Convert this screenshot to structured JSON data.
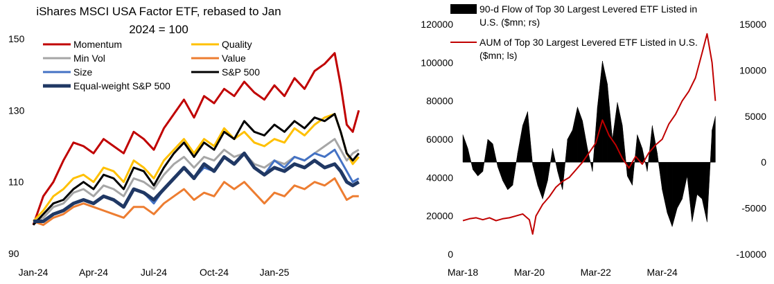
{
  "chart_data": [
    {
      "type": "line",
      "title_lines": [
        "iShares MSCI USA Factor ETF, rebased to Jan",
        "2024 = 100"
      ],
      "x_ticks": [
        "Jan-24",
        "Apr-24",
        "Jul-24",
        "Oct-24",
        "Jan-25"
      ],
      "x_range": [
        0,
        16
      ],
      "x_tick_positions": [
        0,
        3,
        6,
        9,
        12
      ],
      "ylim": [
        90,
        150
      ],
      "y_ticks": [
        "90",
        "110",
        "130",
        "150"
      ],
      "y_tick_values": [
        90,
        110,
        130,
        150
      ],
      "grid": false,
      "series": [
        {
          "name": "Momentum",
          "color": "#c00000",
          "width": 3,
          "x": [
            0,
            0.5,
            1,
            1.5,
            2,
            2.5,
            3,
            3.5,
            4,
            4.5,
            5,
            5.5,
            6,
            6.5,
            7,
            7.5,
            8,
            8.5,
            9,
            9.5,
            10,
            10.5,
            11,
            11.5,
            12,
            12.5,
            13,
            13.5,
            14,
            14.5,
            15,
            15.3,
            15.6,
            15.9,
            16.2
          ],
          "values": [
            98,
            106,
            110,
            116,
            121,
            120,
            118,
            122,
            120,
            118,
            124,
            122,
            119,
            125,
            129,
            133,
            128,
            134,
            132,
            136,
            134,
            138,
            135,
            133,
            137,
            134,
            139,
            136,
            141,
            143,
            146,
            137,
            126,
            124,
            130
          ]
        },
        {
          "name": "Quality",
          "color": "#ffc000",
          "width": 3,
          "x": [
            0,
            0.5,
            1,
            1.5,
            2,
            2.5,
            3,
            3.5,
            4,
            4.5,
            5,
            5.5,
            6,
            6.5,
            7,
            7.5,
            8,
            8.5,
            9,
            9.5,
            10,
            10.5,
            11,
            11.5,
            12,
            12.5,
            13,
            13.5,
            14,
            14.5,
            15,
            15.3,
            15.6,
            15.9,
            16.2
          ],
          "values": [
            99,
            102,
            106,
            108,
            111,
            112,
            110,
            114,
            113,
            110,
            116,
            114,
            111,
            116,
            119,
            122,
            118,
            122,
            120,
            125,
            122,
            124,
            121,
            120,
            122,
            121,
            125,
            123,
            126,
            128,
            129,
            124,
            118,
            115,
            117
          ]
        },
        {
          "name": "Min Vol",
          "color": "#a6a6a6",
          "width": 3,
          "x": [
            0,
            0.5,
            1,
            1.5,
            2,
            2.5,
            3,
            3.5,
            4,
            4.5,
            5,
            5.5,
            6,
            6.5,
            7,
            7.5,
            8,
            8.5,
            9,
            9.5,
            10,
            10.5,
            11,
            11.5,
            12,
            12.5,
            13,
            13.5,
            14,
            14.5,
            15,
            15.3,
            15.6,
            15.9,
            16.2
          ],
          "values": [
            99,
            100,
            103,
            104,
            107,
            108,
            106,
            109,
            108,
            106,
            111,
            110,
            108,
            112,
            115,
            117,
            114,
            117,
            116,
            119,
            117,
            118,
            115,
            114,
            116,
            115,
            117,
            116,
            118,
            120,
            122,
            119,
            116,
            118,
            119
          ]
        },
        {
          "name": "Value",
          "color": "#ed7d31",
          "width": 3,
          "x": [
            0,
            0.5,
            1,
            1.5,
            2,
            2.5,
            3,
            3.5,
            4,
            4.5,
            5,
            5.5,
            6,
            6.5,
            7,
            7.5,
            8,
            8.5,
            9,
            9.5,
            10,
            10.5,
            11,
            11.5,
            12,
            12.5,
            13,
            13.5,
            14,
            14.5,
            15,
            15.3,
            15.6,
            15.9,
            16.2
          ],
          "values": [
            99,
            98,
            100,
            101,
            103,
            104,
            103,
            102,
            101,
            100,
            103,
            103,
            101,
            104,
            106,
            108,
            105,
            107,
            106,
            110,
            108,
            110,
            107,
            104,
            107,
            106,
            109,
            108,
            110,
            109,
            111,
            108,
            105,
            106,
            106
          ]
        },
        {
          "name": "Size",
          "color": "#4472c4",
          "width": 3,
          "x": [
            0,
            0.5,
            1,
            1.5,
            2,
            2.5,
            3,
            3.5,
            4,
            4.5,
            5,
            5.5,
            6,
            6.5,
            7,
            7.5,
            8,
            8.5,
            9,
            9.5,
            10,
            10.5,
            11,
            11.5,
            12,
            12.5,
            13,
            13.5,
            14,
            14.5,
            15,
            15.3,
            15.6,
            15.9,
            16.2
          ],
          "values": [
            99,
            99,
            101,
            102,
            104,
            105,
            104,
            106,
            105,
            103,
            108,
            107,
            104,
            108,
            111,
            114,
            111,
            114,
            113,
            117,
            115,
            118,
            114,
            112,
            116,
            114,
            117,
            116,
            118,
            117,
            119,
            116,
            113,
            110,
            111
          ]
        },
        {
          "name": "S&P 500",
          "color": "#000000",
          "width": 3,
          "x": [
            0,
            0.5,
            1,
            1.5,
            2,
            2.5,
            3,
            3.5,
            4,
            4.5,
            5,
            5.5,
            6,
            6.5,
            7,
            7.5,
            8,
            8.5,
            9,
            9.5,
            10,
            10.5,
            11,
            11.5,
            12,
            12.5,
            13,
            13.5,
            14,
            14.5,
            15,
            15.3,
            15.6,
            15.9,
            16.2
          ],
          "values": [
            98,
            101,
            104,
            105,
            108,
            110,
            108,
            112,
            111,
            108,
            114,
            113,
            109,
            114,
            118,
            121,
            117,
            121,
            119,
            124,
            122,
            127,
            124,
            123,
            126,
            124,
            127,
            125,
            128,
            127,
            129,
            124,
            118,
            116,
            118
          ]
        },
        {
          "name": "Equal-weight S&P 500",
          "color": "#203864",
          "width": 5,
          "x": [
            0,
            0.5,
            1,
            1.5,
            2,
            2.5,
            3,
            3.5,
            4,
            4.5,
            5,
            5.5,
            6,
            6.5,
            7,
            7.5,
            8,
            8.5,
            9,
            9.5,
            10,
            10.5,
            11,
            11.5,
            12,
            12.5,
            13,
            13.5,
            14,
            14.5,
            15,
            15.3,
            15.6,
            15.9,
            16.2
          ],
          "values": [
            99,
            99,
            101,
            102,
            104,
            105,
            104,
            106,
            105,
            103,
            108,
            107,
            105,
            108,
            111,
            114,
            111,
            115,
            113,
            117,
            115,
            118,
            114,
            112,
            114,
            113,
            115,
            114,
            116,
            114,
            115,
            113,
            110,
            109,
            110
          ]
        }
      ]
    },
    {
      "type": "combo",
      "x_ticks": [
        "Mar-18",
        "Mar-20",
        "Mar-22",
        "Mar-24"
      ],
      "x_range": [
        0,
        7.8
      ],
      "x_tick_positions": [
        0,
        2,
        4,
        6
      ],
      "left_axis": {
        "ylim": [
          0,
          120000
        ],
        "ticks": [
          "0",
          "20000",
          "40000",
          "60000",
          "80000",
          "100000",
          "120000"
        ],
        "tick_values": [
          0,
          20000,
          40000,
          60000,
          80000,
          100000,
          120000
        ]
      },
      "right_axis": {
        "ylim": [
          -10000,
          15000
        ],
        "ticks": [
          "-10000",
          "-5000",
          "0",
          "5000",
          "10000",
          "15000"
        ],
        "tick_values": [
          -10000,
          -5000,
          0,
          5000,
          10000,
          15000
        ]
      },
      "grid": false,
      "legend": [
        {
          "swatch": "bar",
          "lines": [
            "90-d Flow of Top 30 Largest Levered ETF Listed in",
            "U.S. ($mn; rs)"
          ]
        },
        {
          "swatch": "line",
          "lines": [
            "AUM of Top 30 Largest Levered ETF Listed in U.S.",
            "($mn; ls)"
          ]
        }
      ],
      "bar_series": {
        "name": "90-d Flow of Top 30 Largest Levered ETF Listed in U.S. ($mn; rs)",
        "color": "#000000",
        "axis": "right",
        "x": [
          0,
          0.15,
          0.3,
          0.45,
          0.6,
          0.75,
          0.9,
          1.05,
          1.2,
          1.35,
          1.5,
          1.65,
          1.8,
          1.95,
          2.1,
          2.25,
          2.4,
          2.55,
          2.7,
          2.85,
          3.0,
          3.15,
          3.3,
          3.45,
          3.6,
          3.75,
          3.9,
          4.05,
          4.2,
          4.35,
          4.5,
          4.65,
          4.8,
          4.95,
          5.1,
          5.25,
          5.4,
          5.55,
          5.7,
          5.85,
          6.0,
          6.15,
          6.3,
          6.45,
          6.6,
          6.75,
          6.9,
          7.05,
          7.2,
          7.35,
          7.5,
          7.6
        ],
        "values": [
          3000,
          1500,
          -800,
          -1500,
          -1000,
          2500,
          2000,
          -500,
          -2000,
          -3000,
          -2500,
          1000,
          4000,
          5500,
          -300,
          -2500,
          -4000,
          -2000,
          1500,
          -1000,
          -3000,
          2500,
          3500,
          6000,
          4500,
          1500,
          -1000,
          6000,
          11000,
          8500,
          2500,
          6500,
          4000,
          -1500,
          -2500,
          3000,
          1500,
          -1000,
          4000,
          1000,
          -3000,
          -5500,
          -7000,
          -5000,
          -4000,
          -1500,
          -6500,
          -3500,
          -4000,
          -6500,
          3500,
          5000
        ]
      },
      "line_series": {
        "name": "AUM of Top 30 Largest Levered ETF Listed in U.S. ($mn; ls)",
        "color": "#c00000",
        "axis": "left",
        "x": [
          0,
          0.2,
          0.4,
          0.6,
          0.8,
          1.0,
          1.2,
          1.4,
          1.6,
          1.8,
          2.0,
          2.1,
          2.2,
          2.4,
          2.6,
          2.8,
          3.0,
          3.2,
          3.4,
          3.6,
          3.8,
          4.0,
          4.2,
          4.4,
          4.6,
          4.8,
          5.0,
          5.2,
          5.4,
          5.6,
          5.8,
          6.0,
          6.2,
          6.4,
          6.6,
          6.8,
          7.0,
          7.2,
          7.35,
          7.5,
          7.6
        ],
        "values": [
          17500,
          18500,
          19000,
          18000,
          19000,
          17500,
          18500,
          19000,
          20000,
          21000,
          18000,
          10500,
          20000,
          26000,
          30000,
          35000,
          38000,
          40000,
          44000,
          48000,
          53000,
          58000,
          70000,
          62000,
          57000,
          50000,
          45000,
          51000,
          47000,
          53000,
          57000,
          60000,
          68000,
          73000,
          80000,
          85000,
          92000,
          105000,
          115000,
          100000,
          80000
        ]
      }
    }
  ]
}
